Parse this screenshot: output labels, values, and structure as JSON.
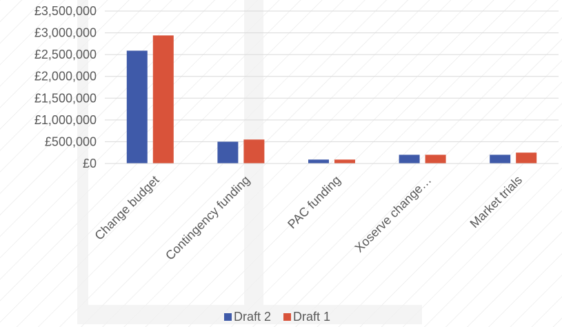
{
  "chart_data": {
    "type": "bar",
    "categories": [
      "Change budget",
      "Contingency funding",
      "PAC funding",
      "Xoserve change…",
      "Market trials"
    ],
    "series": [
      {
        "name": "Draft 2",
        "values": [
          2590000,
          500000,
          90000,
          200000,
          200000
        ],
        "color": "#3f5aa9"
      },
      {
        "name": "Draft 1",
        "values": [
          2940000,
          550000,
          90000,
          200000,
          250000
        ],
        "color": "#d9533a"
      }
    ],
    "yticks": [
      "£0",
      "£500,000",
      "£1,000,000",
      "£1,500,000",
      "£2,000,000",
      "£2,500,000",
      "£3,000,000",
      "£3,500,000"
    ],
    "ylim": [
      0,
      3500000
    ],
    "grid": true,
    "legend_position": "bottom"
  }
}
